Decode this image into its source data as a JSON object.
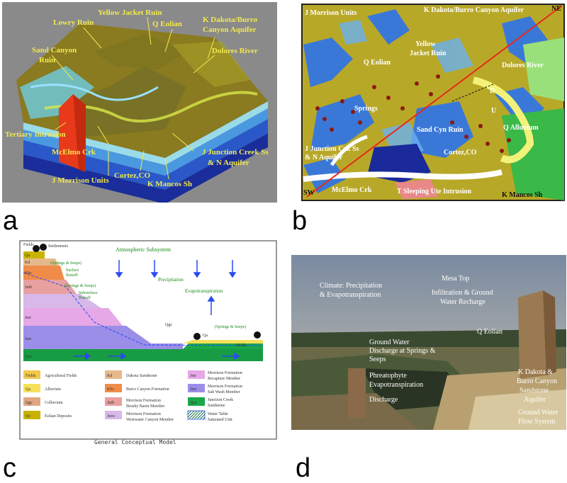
{
  "figure": {
    "panel_labels": [
      "a",
      "b",
      "c",
      "d"
    ]
  },
  "panel_a": {
    "labels": {
      "lowry": "Lowry Ruin",
      "yellow_jacket": "Yellow Jacket Ruin",
      "q_eolian": "Q Eolian",
      "kdakota_1": "K Dakota/Burro",
      "kdakota_2": "Canyon Aquifer",
      "sand_canyon_1": "Sand Canyon",
      "sand_canyon_2": "Ruin",
      "dolores": "Dolores River",
      "tertiary": "Tertiary Intrusion",
      "mcelmo": "McElmo Crk",
      "j_junction_1": "J Junction Creek Ss",
      "j_junction_2": "& N Aquifer",
      "j_morrison": "J Morrison Units",
      "cortez": "Cortez,CO",
      "k_mancos": "K Mancos Sh"
    }
  },
  "panel_b": {
    "labels": {
      "j_morrison": "J Morrison Units",
      "kdakota": "K Dakota/Burro Canyon Aquifer",
      "ne": "NE",
      "q_eolian": "Q Eolian",
      "yellow_jacket_1": "Yellow",
      "yellow_jacket_2": "Jacket Ruin",
      "dolores": "Dolores River",
      "springs": "Springs",
      "d": "D",
      "u": "U",
      "sand_cyn": "Sand Cyn Ruin",
      "q_alluvium": "Q Alluvium",
      "j_junction_1": "J Junction Crk Ss",
      "j_junction_2": "& N Aquifer",
      "cortez": "Cortez,CO",
      "sw": "SW",
      "mcelmo": "McElmo Crk",
      "sleeping_ute": "T Sleeping Ute Intrusion",
      "k_mancos": "K Mancos Sh"
    }
  },
  "panel_c": {
    "title": "General Conceptual Model",
    "diagram": {
      "fields": "Fields",
      "settlements": "Settlements",
      "atmospheric": "Atmospheric Subsystem",
      "springs_seeps_1": "(Springs & Seeps)",
      "springs_seeps_2": "(Springs & Seeps)",
      "springs_seeps_3": "(Springs & Seeps)",
      "surface_runoff_1": "Surface",
      "surface_runoff_2": "Runoff",
      "subsurface_runoff_1": "Subsurface",
      "subsurface_runoff_2": "Runoff",
      "precipitation": "Precipitation",
      "evapotranspiration": "Evapotranspiration",
      "qgc": "Qgc",
      "qa": "Qa",
      "fields_right": "Fields",
      "unit_qa": "Qa",
      "unit_kd": "Kd",
      "unit_kbc": "Kbc",
      "unit_jmb": "Jmb",
      "unit_jmr": "Jmr",
      "unit_jms": "Jms",
      "unit_jjcn": "Jjcn"
    },
    "legend": [
      {
        "code": "Fields",
        "label": "Agricultural Fields",
        "color": "#f2c94c"
      },
      {
        "code": "Qa",
        "label": "Alluvium",
        "color": "#f7e05a"
      },
      {
        "code": "Qgc",
        "label": "Colluvium",
        "color": "#e0a882"
      },
      {
        "code": "Qe",
        "label": "Eolian Deposits",
        "color": "#c8b400"
      },
      {
        "code": "Kd",
        "label": "Dakota Sandstone",
        "color": "#e6b98c"
      },
      {
        "code": "Kbc",
        "label": "Burro Canyon Formation",
        "color": "#f08c4a"
      },
      {
        "code": "Jmb",
        "label1": "Morrison Formation",
        "label2": "Brushy Basin Member",
        "color": "#e8a0a0"
      },
      {
        "code": "Jmw",
        "label1": "Morrison Formation",
        "label2": "Westwater Canyon Member",
        "color": "#d7b8e8"
      },
      {
        "code": "Jmr",
        "label1": "Morrison Formation",
        "label2": "Recapture Member",
        "color": "#e6a8e6"
      },
      {
        "code": "Jms",
        "label1": "Morrison Formation",
        "label2": "Salt Wash Member",
        "color": "#9b8ee8"
      },
      {
        "code": "Jjcn",
        "label1": "Junction Creek",
        "label2": "Sandstone",
        "color": "#1aa84a"
      },
      {
        "code": "",
        "label1": "Water Table",
        "label2": "Saturated Unit",
        "color": "#4a6cf0"
      }
    ]
  },
  "panel_d": {
    "labels": {
      "climate_1": "Climate: Precipitation",
      "climate_2": "& Evapotranspiration",
      "mesa_top": "Mesa Top",
      "infiltration_1": "Infiltration & Ground",
      "infiltration_2": "Water Recharge",
      "q_eolian": "Q Eolian",
      "gw_discharge_1": "Ground Water",
      "gw_discharge_2": "Discharge at Springs &",
      "gw_discharge_3": "Seeps",
      "phreatophyte_1": "Phreatophyte",
      "phreatophyte_2": "Evapotranspiration",
      "discharge": "Discharge",
      "kdakota_1": "K Dakota &",
      "kdakota_2": "Burro Canyon",
      "kdakota_3": "Sandstone",
      "kdakota_4": "Aquifer",
      "gw_flow_1": "Ground Water",
      "gw_flow_2": "Flow System"
    }
  }
}
